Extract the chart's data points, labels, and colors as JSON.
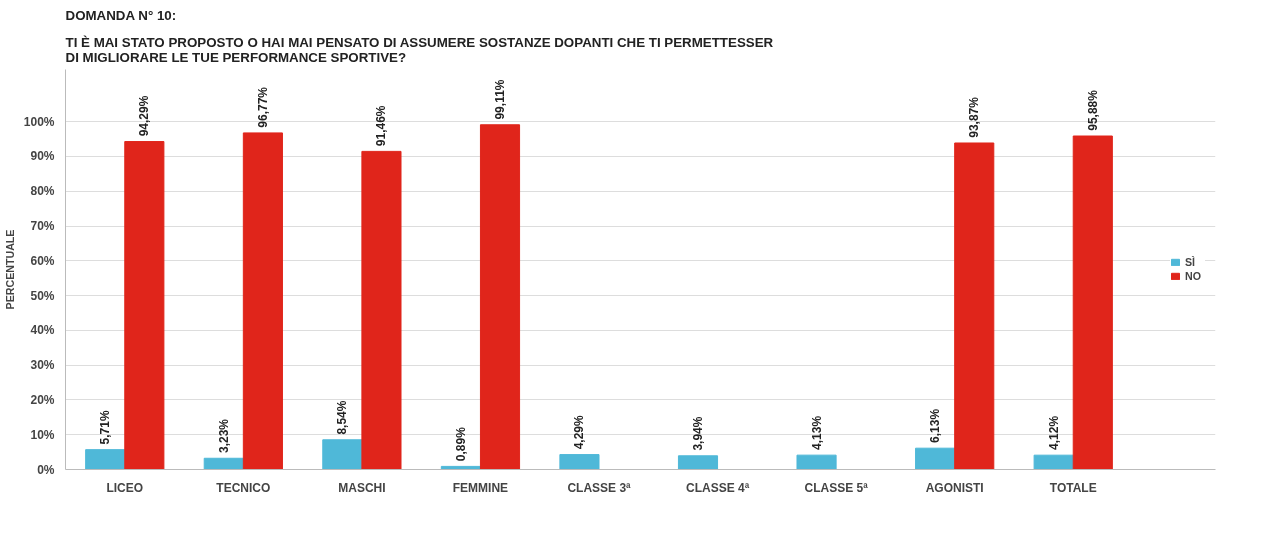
{
  "chart_data": {
    "type": "bar",
    "title": "DOMANDA N° 10:",
    "subtitle": "TI È MAI STATO PROPOSTO O HAI MAI PENSATO DI ASSUMERE SOSTANZE DOPANTI CHE TI PERMETTESSER\n DI MIGLIORARE LE TUE PERFORMANCE SPORTIVE?",
    "ylabel": "PERCENTUALE",
    "categories": [
      "LICEO",
      "TECNICO",
      "MASCHI",
      "FEMMINE",
      "CLASSE 3ª",
      "CLASSE 4ª",
      "CLASSE 5ª",
      "AGONISTI",
      "TOTALE"
    ],
    "series": [
      {
        "name": "SÌ",
        "color": "#4fb8d8",
        "values": [
          5.71,
          3.23,
          8.54,
          0.89,
          4.29,
          3.94,
          4.13,
          6.13,
          4.12
        ],
        "value_labels": [
          "5,71%",
          "3,23%",
          "8,54%",
          "0,89%",
          "4,29%",
          "3,94%",
          "4,13%",
          "6,13%",
          "4,12%"
        ]
      },
      {
        "name": "NO",
        "color": "#e0251b",
        "values": [
          94.29,
          96.77,
          91.46,
          99.11,
          null,
          null,
          null,
          93.87,
          95.88
        ],
        "value_labels": [
          "94,29%",
          "96,77%",
          "91,46%",
          "99,11%",
          null,
          null,
          null,
          "93,87%",
          "95,88%"
        ]
      }
    ],
    "ylim": [
      0,
      115
    ],
    "yticks": [
      {
        "value": 0,
        "label": "0%"
      },
      {
        "value": 10,
        "label": "10%"
      },
      {
        "value": 20,
        "label": "20%"
      },
      {
        "value": 30,
        "label": "30%"
      },
      {
        "value": 40,
        "label": "40%"
      },
      {
        "value": 50,
        "label": "50%"
      },
      {
        "value": 60,
        "label": "60%"
      },
      {
        "value": 70,
        "label": "70%"
      },
      {
        "value": 80,
        "label": "80%"
      },
      {
        "value": 90,
        "label": "90%"
      },
      {
        "value": 100,
        "label": "100%"
      }
    ],
    "grid": "y",
    "legend": "right"
  }
}
